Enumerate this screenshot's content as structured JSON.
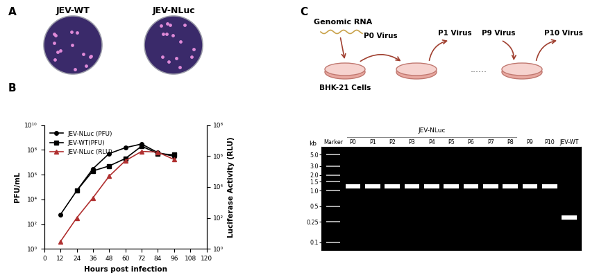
{
  "panel_labels": [
    "A",
    "B",
    "C"
  ],
  "plaque_plates": {
    "labels": [
      "JEV-WT",
      "JEV-NLuc"
    ]
  },
  "chart_data": {
    "type": "line",
    "xlabel": "Hours post infection",
    "ylabel": "PFU/mL",
    "y2label": "Luciferase Activity (RLU)",
    "log": "y",
    "legend": "upper left",
    "xlim": [
      0,
      120
    ],
    "xticks": [
      0,
      12,
      24,
      36,
      48,
      60,
      72,
      84,
      96,
      108,
      120
    ],
    "ylim": [
      1,
      10000000000
    ],
    "yticks": [
      {
        "value": 1,
        "label": "10⁰"
      },
      {
        "value": 100,
        "label": "10²"
      },
      {
        "value": 10000,
        "label": "10⁴"
      },
      {
        "value": 1000000,
        "label": "10⁶"
      },
      {
        "value": 100000000,
        "label": "10⁸"
      },
      {
        "value": 10000000000,
        "label": "10¹⁰"
      }
    ],
    "y2lim": [
      1,
      100000000
    ],
    "y2ticks": [
      {
        "value": 1,
        "label": "10⁰"
      },
      {
        "value": 100,
        "label": "10²"
      },
      {
        "value": 10000,
        "label": "10⁴"
      },
      {
        "value": 1000000,
        "label": "10⁶"
      },
      {
        "value": 100000000,
        "label": "10⁸"
      }
    ],
    "series": [
      {
        "name": "JEV-NLuc (PFU)",
        "color": "#000000",
        "marker": "circle",
        "line_style": "solid",
        "x": [
          12,
          24,
          36,
          48,
          60,
          72,
          84,
          96
        ],
        "values": [
          600,
          50000,
          3000000,
          50000000,
          150000000,
          300000000,
          60000000,
          30000000
        ]
      },
      {
        "name": "JEV-WT(PFU)",
        "color": "#000000",
        "marker": "square",
        "line_style": "solid",
        "x": [
          24,
          36,
          48,
          60,
          72,
          84,
          96
        ],
        "values": [
          50000,
          2000000,
          5000000,
          20000000,
          200000000,
          50000000,
          40000000
        ]
      },
      {
        "name": "JEV-NLuc (RLU)",
        "color": "#b03030",
        "marker": "triangle",
        "line_style": "solid",
        "axis": "y2",
        "x": [
          12,
          24,
          36,
          48,
          60,
          72,
          84,
          96
        ],
        "values": [
          3,
          100,
          2000,
          50000,
          500000,
          2000000,
          1800000,
          600000
        ]
      }
    ]
  },
  "passage_diagram": {
    "source": "Genomic RNA",
    "cells": "BHK-21 Cells",
    "viruses": [
      "P0 Virus",
      "P1 Virus",
      "P9 Virus",
      "P10 Virus"
    ],
    "ellipsis": "......"
  },
  "gel": {
    "unit": "kb",
    "lanes": [
      "Marker",
      "P0",
      "P1",
      "P2",
      "P3",
      "P4",
      "P5",
      "P6",
      "P7",
      "P8",
      "P9",
      "P10",
      "JEV-WT"
    ],
    "group": {
      "label": "JEV-NLuc",
      "from": "P0",
      "to": "P8"
    },
    "ylim": [
      0.07,
      7
    ],
    "yticks": [
      {
        "value": 5.0,
        "label": "5.0"
      },
      {
        "value": 3.0,
        "label": "3.0"
      },
      {
        "value": 2.0,
        "label": "2.0"
      },
      {
        "value": 1.5,
        "label": "1.5"
      },
      {
        "value": 1.0,
        "label": "1.0"
      },
      {
        "value": 0.5,
        "label": "0.5"
      },
      {
        "value": 0.25,
        "label": "0.25"
      },
      {
        "value": 0.1,
        "label": "0.1"
      }
    ],
    "band_kb": [
      null,
      1.2,
      1.2,
      1.2,
      1.2,
      1.2,
      1.2,
      1.2,
      1.2,
      1.2,
      1.2,
      1.2,
      0.3
    ]
  }
}
